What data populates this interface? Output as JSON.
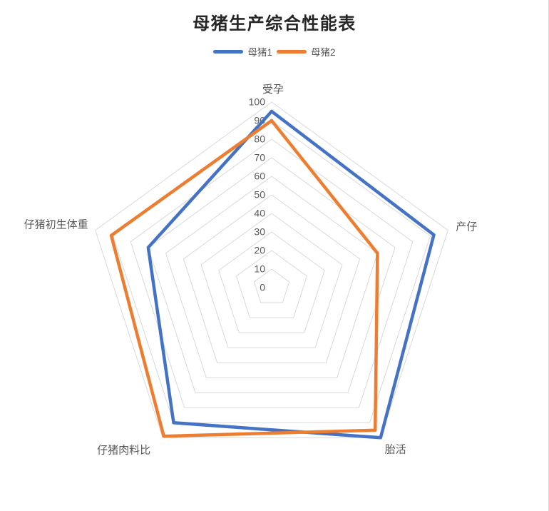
{
  "chart_data": {
    "type": "radar",
    "title": "母猪生产综合性能表",
    "categories": [
      "受孕",
      "产仔",
      "胎活",
      "仔猪肉料比",
      "仔猪初生体重"
    ],
    "series": [
      {
        "name": "母猪1",
        "color": "#4472C4",
        "values": [
          95,
          92,
          100,
          90,
          70
        ]
      },
      {
        "name": "母猪2",
        "color": "#ED7D31",
        "values": [
          90,
          60,
          95,
          99,
          91
        ]
      }
    ],
    "radial_axis": {
      "min": 0,
      "max": 100,
      "step": 10,
      "tick_labels": [
        "0",
        "10",
        "20",
        "30",
        "40",
        "50",
        "60",
        "70",
        "80",
        "90",
        "100"
      ]
    },
    "grid": {
      "shape": "pentagon-rings",
      "color": "#D9D9D9",
      "show_spokes": false
    },
    "legend_position": "top",
    "text_colors": {
      "title": "#262626",
      "labels": "#595959"
    }
  }
}
